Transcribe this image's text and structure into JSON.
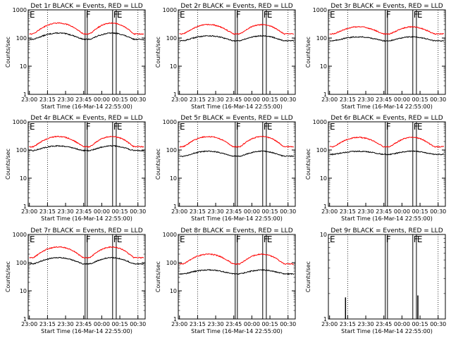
{
  "shared": {
    "xlabel": "Start Time (16-Mar-14 22:55:00)",
    "ylabel": "Counts/sec",
    "xticks": [
      "23:00",
      "23:15",
      "23:30",
      "23:45",
      "00:00",
      "00:15",
      "00:30"
    ],
    "yticks": [
      "1",
      "10",
      "100",
      "1000"
    ],
    "flag_labels": {
      "E1": "E",
      "F": "F",
      "F2": "F",
      "E2": "E"
    },
    "colors": {
      "events": "#000000",
      "lld": "#ff0000"
    }
  },
  "chart_data": [
    {
      "type": "line",
      "title": "Det 1r BLACK = Events, RED = LLD",
      "ylog": true,
      "ylim": [
        1,
        1000
      ],
      "series": [
        {
          "name": "Events",
          "color": "#000000",
          "profile": "curve",
          "base": 90,
          "peak": 150
        },
        {
          "name": "LLD",
          "color": "#ff0000",
          "profile": "curve",
          "base": 140,
          "peak": 340
        }
      ]
    },
    {
      "type": "line",
      "title": "Det 2r BLACK = Events, RED = LLD",
      "ylog": true,
      "ylim": [
        1,
        1000
      ],
      "series": [
        {
          "name": "Events",
          "color": "#000000",
          "profile": "curve",
          "base": 80,
          "peak": 120
        },
        {
          "name": "LLD",
          "color": "#ff0000",
          "profile": "curve",
          "base": 140,
          "peak": 300
        }
      ]
    },
    {
      "type": "line",
      "title": "Det 3r BLACK = Events, RED = LLD",
      "ylog": true,
      "ylim": [
        1,
        1000
      ],
      "series": [
        {
          "name": "Events",
          "color": "#000000",
          "profile": "curve",
          "base": 80,
          "peak": 110
        },
        {
          "name": "LLD",
          "color": "#ff0000",
          "profile": "curve",
          "base": 140,
          "peak": 250
        }
      ]
    },
    {
      "type": "line",
      "title": "Det 4r BLACK = Events, RED = LLD",
      "ylog": true,
      "ylim": [
        1,
        1000
      ],
      "series": [
        {
          "name": "Events",
          "color": "#000000",
          "profile": "curve",
          "base": 95,
          "peak": 140
        },
        {
          "name": "LLD",
          "color": "#ff0000",
          "profile": "curve",
          "base": 130,
          "peak": 300
        }
      ]
    },
    {
      "type": "line",
      "title": "Det 5r BLACK = Events, RED = LLD",
      "ylog": true,
      "ylim": [
        1,
        1000
      ],
      "series": [
        {
          "name": "Events",
          "color": "#000000",
          "profile": "curve",
          "base": 60,
          "peak": 90
        },
        {
          "name": "LLD",
          "color": "#ff0000",
          "profile": "curve",
          "base": 130,
          "peak": 300
        }
      ]
    },
    {
      "type": "line",
      "title": "Det 6r BLACK = Events, RED = LLD",
      "ylog": true,
      "ylim": [
        1,
        1000
      ],
      "series": [
        {
          "name": "Events",
          "color": "#000000",
          "profile": "curve",
          "base": 70,
          "peak": 90
        },
        {
          "name": "LLD",
          "color": "#ff0000",
          "profile": "curve",
          "base": 130,
          "peak": 280
        }
      ]
    },
    {
      "type": "line",
      "title": "Det 7r BLACK = Events, RED = LLD",
      "ylog": true,
      "ylim": [
        1,
        1000
      ],
      "series": [
        {
          "name": "Events",
          "color": "#000000",
          "profile": "curve",
          "base": 90,
          "peak": 150
        },
        {
          "name": "LLD",
          "color": "#ff0000",
          "profile": "curve",
          "base": 150,
          "peak": 360
        }
      ]
    },
    {
      "type": "line",
      "title": "Det 8r BLACK = Events, RED = LLD",
      "ylog": true,
      "ylim": [
        1,
        1000
      ],
      "series": [
        {
          "name": "Events",
          "color": "#000000",
          "profile": "curve",
          "base": 40,
          "peak": 55
        },
        {
          "name": "LLD",
          "color": "#ff0000",
          "profile": "curve",
          "base": 90,
          "peak": 200
        }
      ]
    },
    {
      "type": "line",
      "title": "Det 9r BLACK = Events, RED = LLD",
      "ylog": true,
      "ylim": [
        1,
        10
      ],
      "series": [
        {
          "name": "Events",
          "color": "#000000",
          "profile": "spikes",
          "spikes": [
            [
              23.22,
              1.8
            ],
            [
              0.22,
              1.9
            ]
          ]
        }
      ]
    }
  ]
}
